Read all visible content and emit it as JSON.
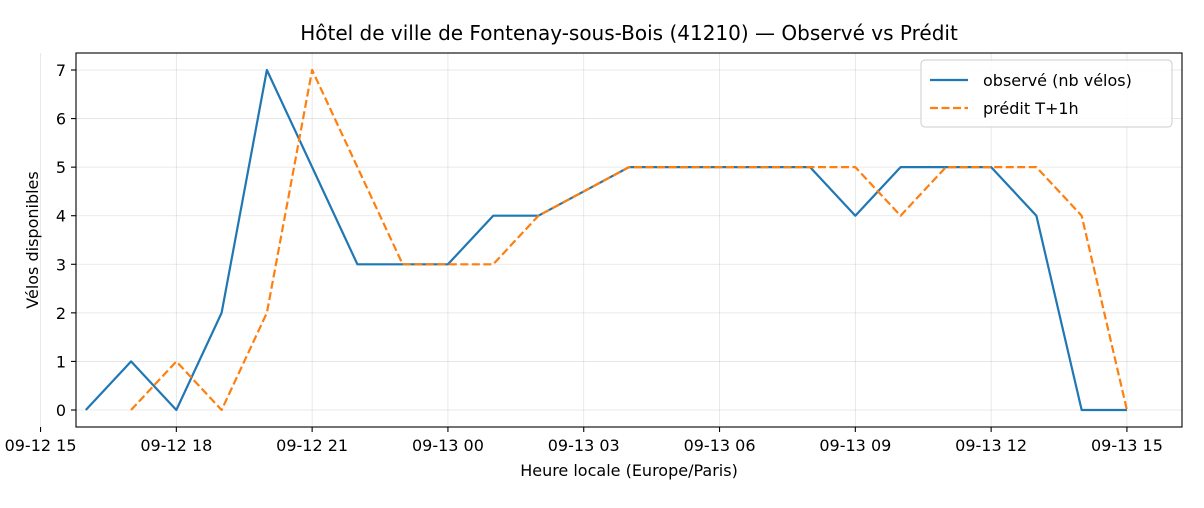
{
  "chart_data": {
    "type": "line",
    "title": "Hôtel de ville de Fontenay-sous-Bois (41210) — Observé vs Prédit",
    "xlabel": "Heure locale (Europe/Paris)",
    "ylabel": "Vélos disponibles",
    "xlim": [
      "2024-09-12 15:47",
      "2024-09-13 16:13"
    ],
    "ylim": [
      -0.35,
      7.35
    ],
    "grid": true,
    "legend_position": "top-right",
    "x_ticks": [
      {
        "x": "2024-09-12 15:00",
        "label": "09-12 15"
      },
      {
        "x": "2024-09-12 18:00",
        "label": "09-12 18"
      },
      {
        "x": "2024-09-12 21:00",
        "label": "09-12 21"
      },
      {
        "x": "2024-09-13 00:00",
        "label": "09-13 00"
      },
      {
        "x": "2024-09-13 03:00",
        "label": "09-13 03"
      },
      {
        "x": "2024-09-13 06:00",
        "label": "09-13 06"
      },
      {
        "x": "2024-09-13 09:00",
        "label": "09-13 09"
      },
      {
        "x": "2024-09-13 12:00",
        "label": "09-13 12"
      },
      {
        "x": "2024-09-13 15:00",
        "label": "09-13 15"
      }
    ],
    "y_ticks": [
      0,
      1,
      2,
      3,
      4,
      5,
      6,
      7
    ],
    "series": [
      {
        "name": "observé (nb vélos)",
        "color": "#1f77b4",
        "dash": "solid",
        "x": [
          "2024-09-12 16:00",
          "2024-09-12 17:00",
          "2024-09-12 18:00",
          "2024-09-12 19:00",
          "2024-09-12 20:00",
          "2024-09-12 21:00",
          "2024-09-12 22:00",
          "2024-09-12 23:00",
          "2024-09-13 00:00",
          "2024-09-13 01:00",
          "2024-09-13 02:00",
          "2024-09-13 03:00",
          "2024-09-13 04:00",
          "2024-09-13 05:00",
          "2024-09-13 06:00",
          "2024-09-13 07:00",
          "2024-09-13 08:00",
          "2024-09-13 09:00",
          "2024-09-13 10:00",
          "2024-09-13 11:00",
          "2024-09-13 12:00",
          "2024-09-13 13:00",
          "2024-09-13 14:00",
          "2024-09-13 15:00"
        ],
        "y": [
          0,
          1,
          0,
          2,
          7,
          5,
          3,
          3,
          3,
          4,
          4,
          4.5,
          5,
          5,
          5,
          5,
          5,
          4,
          5,
          5,
          5,
          4,
          0,
          0
        ]
      },
      {
        "name": "prédit T+1h",
        "color": "#ff7f0e",
        "dash": "dashed",
        "x": [
          "2024-09-12 17:00",
          "2024-09-12 18:00",
          "2024-09-12 19:00",
          "2024-09-12 20:00",
          "2024-09-12 21:00",
          "2024-09-12 22:00",
          "2024-09-12 23:00",
          "2024-09-13 00:00",
          "2024-09-13 01:00",
          "2024-09-13 02:00",
          "2024-09-13 03:00",
          "2024-09-13 04:00",
          "2024-09-13 05:00",
          "2024-09-13 06:00",
          "2024-09-13 07:00",
          "2024-09-13 08:00",
          "2024-09-13 09:00",
          "2024-09-13 10:00",
          "2024-09-13 11:00",
          "2024-09-13 12:00",
          "2024-09-13 13:00",
          "2024-09-13 14:00",
          "2024-09-13 15:00"
        ],
        "y": [
          0,
          1,
          0,
          2,
          7,
          5,
          3,
          3,
          3,
          4,
          4.5,
          5,
          5,
          5,
          5,
          5,
          5,
          4,
          5,
          5,
          5,
          4,
          0
        ]
      }
    ]
  }
}
